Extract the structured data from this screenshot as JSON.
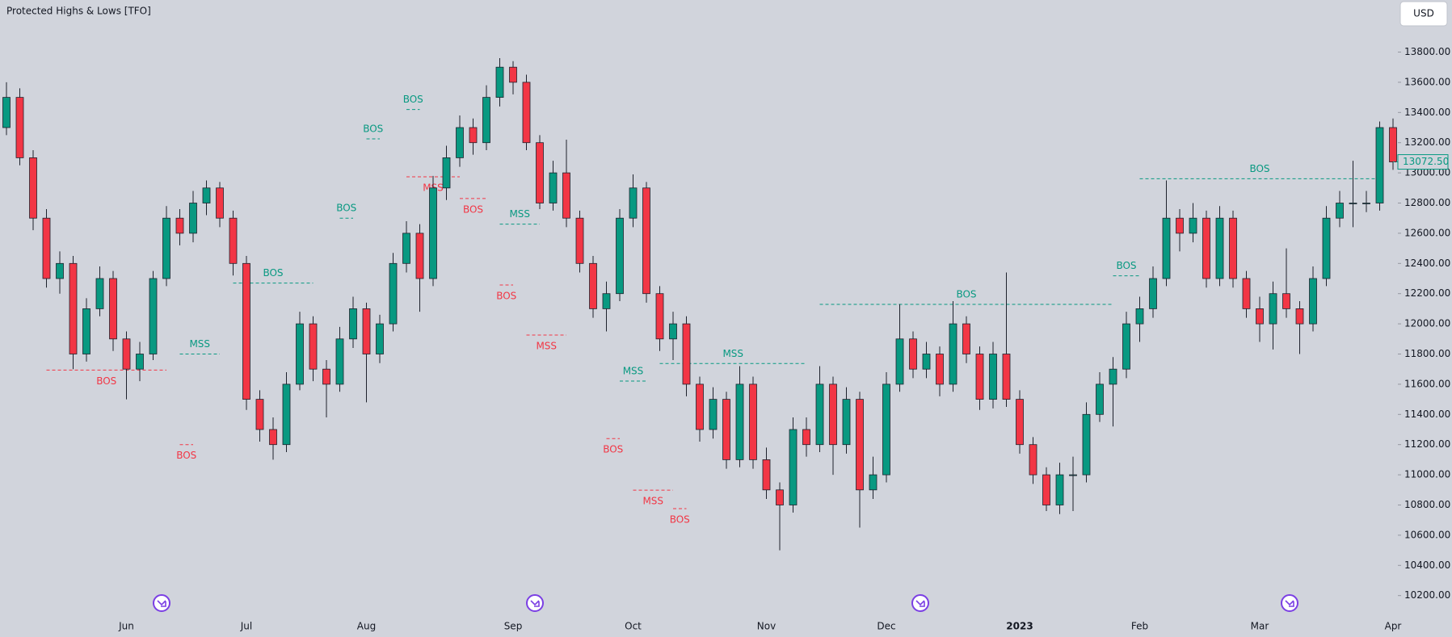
{
  "chart_data": {
    "type": "candlestick",
    "title": "Protected Highs & Lows [TFO]",
    "currency": "USD",
    "last_price_label": "13072.50",
    "up_color": "#089981",
    "down_color": "#f23645",
    "ylim": [
      10070,
      14145
    ],
    "yticks": [
      {
        "value": 10200,
        "label": "10200.00"
      },
      {
        "value": 10400,
        "label": "10400.00"
      },
      {
        "value": 10600,
        "label": "10600.00"
      },
      {
        "value": 10800,
        "label": "10800.00"
      },
      {
        "value": 11000,
        "label": "11000.00"
      },
      {
        "value": 11200,
        "label": "11200.00"
      },
      {
        "value": 11400,
        "label": "11400.00"
      },
      {
        "value": 11600,
        "label": "11600.00"
      },
      {
        "value": 11800,
        "label": "11800.00"
      },
      {
        "value": 12000,
        "label": "12000.00"
      },
      {
        "value": 12200,
        "label": "12200.00"
      },
      {
        "value": 12400,
        "label": "12400.00"
      },
      {
        "value": 12600,
        "label": "12600.00"
      },
      {
        "value": 12800,
        "label": "12800.00"
      },
      {
        "value": 13000,
        "label": "13000.00"
      },
      {
        "value": 13200,
        "label": "13200.00"
      },
      {
        "value": 13400,
        "label": "13400.00"
      },
      {
        "value": 13600,
        "label": "13600.00"
      },
      {
        "value": 13800,
        "label": "13800.00"
      }
    ],
    "xticks": [
      {
        "value": 9,
        "label": "Jun"
      },
      {
        "value": 18,
        "label": "Jul"
      },
      {
        "value": 27,
        "label": "Aug"
      },
      {
        "value": 38,
        "label": "Sep"
      },
      {
        "value": 47,
        "label": "Oct"
      },
      {
        "value": 57,
        "label": "Nov"
      },
      {
        "value": 66,
        "label": "Dec"
      },
      {
        "value": 76,
        "label": "2023"
      },
      {
        "value": 85,
        "label": "Feb"
      },
      {
        "value": 94,
        "label": "Mar"
      },
      {
        "value": 104,
        "label": "Apr"
      }
    ],
    "candles": [
      [
        13300,
        13600,
        13250,
        13500
      ],
      [
        13500,
        13560,
        13050,
        13100
      ],
      [
        13100,
        13150,
        12620,
        12700
      ],
      [
        12700,
        12760,
        12240,
        12300
      ],
      [
        12300,
        12480,
        12200,
        12400
      ],
      [
        12400,
        12450,
        11700,
        11800
      ],
      [
        11800,
        12170,
        11750,
        12100
      ],
      [
        12100,
        12380,
        12050,
        12300
      ],
      [
        12300,
        12350,
        11820,
        11900
      ],
      [
        11900,
        11950,
        11500,
        11700
      ],
      [
        11700,
        11880,
        11620,
        11800
      ],
      [
        11800,
        12350,
        11760,
        12300
      ],
      [
        12300,
        12780,
        12250,
        12700
      ],
      [
        12700,
        12760,
        12520,
        12600
      ],
      [
        12600,
        12880,
        12540,
        12800
      ],
      [
        12800,
        12950,
        12720,
        12900
      ],
      [
        12900,
        12940,
        12640,
        12700
      ],
      [
        12700,
        12750,
        12320,
        12400
      ],
      [
        12400,
        12450,
        11430,
        11500
      ],
      [
        11500,
        11560,
        11220,
        11300
      ],
      [
        11300,
        11380,
        11100,
        11200
      ],
      [
        11200,
        11680,
        11150,
        11600
      ],
      [
        11600,
        12080,
        11560,
        12000
      ],
      [
        12000,
        12050,
        11620,
        11700
      ],
      [
        11700,
        11760,
        11380,
        11600
      ],
      [
        11600,
        11980,
        11550,
        11900
      ],
      [
        11900,
        12180,
        11840,
        12100
      ],
      [
        12100,
        12140,
        11480,
        11800
      ],
      [
        11800,
        12060,
        11740,
        12000
      ],
      [
        12000,
        12470,
        11950,
        12400
      ],
      [
        12400,
        12680,
        12340,
        12600
      ],
      [
        12600,
        12660,
        12080,
        12300
      ],
      [
        12300,
        12980,
        12250,
        12900
      ],
      [
        12900,
        13180,
        12820,
        13100
      ],
      [
        13100,
        13380,
        13040,
        13300
      ],
      [
        13300,
        13360,
        13120,
        13200
      ],
      [
        13200,
        13580,
        13150,
        13500
      ],
      [
        13500,
        13760,
        13440,
        13700
      ],
      [
        13700,
        13740,
        13520,
        13600
      ],
      [
        13600,
        13650,
        13150,
        13200
      ],
      [
        13200,
        13250,
        12760,
        12800
      ],
      [
        12800,
        13080,
        12750,
        13000
      ],
      [
        13000,
        13220,
        12640,
        12700
      ],
      [
        12700,
        12750,
        12340,
        12400
      ],
      [
        12400,
        12450,
        12040,
        12100
      ],
      [
        12100,
        12280,
        11950,
        12200
      ],
      [
        12200,
        12760,
        12150,
        12700
      ],
      [
        12700,
        12990,
        12640,
        12900
      ],
      [
        12900,
        12940,
        12140,
        12200
      ],
      [
        12200,
        12250,
        11820,
        11900
      ],
      [
        11900,
        12080,
        11760,
        12000
      ],
      [
        12000,
        12050,
        11520,
        11600
      ],
      [
        11600,
        11650,
        11220,
        11300
      ],
      [
        11300,
        11580,
        11240,
        11500
      ],
      [
        11500,
        11550,
        11040,
        11100
      ],
      [
        11100,
        11720,
        11050,
        11600
      ],
      [
        11600,
        11650,
        11040,
        11100
      ],
      [
        11100,
        11180,
        10840,
        10900
      ],
      [
        10900,
        10950,
        10500,
        10800
      ],
      [
        10800,
        11380,
        10750,
        11300
      ],
      [
        11300,
        11380,
        11120,
        11200
      ],
      [
        11200,
        11720,
        11150,
        11600
      ],
      [
        11600,
        11650,
        11000,
        11200
      ],
      [
        11200,
        11580,
        11140,
        11500
      ],
      [
        11500,
        11550,
        10650,
        10900
      ],
      [
        10900,
        11120,
        10840,
        11000
      ],
      [
        11000,
        11680,
        10950,
        11600
      ],
      [
        11600,
        12130,
        11550,
        11900
      ],
      [
        11900,
        11950,
        11640,
        11700
      ],
      [
        11700,
        11880,
        11640,
        11800
      ],
      [
        11800,
        11850,
        11520,
        11600
      ],
      [
        11600,
        12150,
        11550,
        12000
      ],
      [
        12000,
        12050,
        11740,
        11800
      ],
      [
        11800,
        11850,
        11430,
        11500
      ],
      [
        11500,
        11880,
        11440,
        11800
      ],
      [
        11800,
        12340,
        11450,
        11500
      ],
      [
        11500,
        11560,
        11140,
        11200
      ],
      [
        11200,
        11250,
        10940,
        11000
      ],
      [
        11000,
        11050,
        10760,
        10800
      ],
      [
        10800,
        11080,
        10740,
        11000
      ],
      [
        11000,
        11120,
        10760,
        11000
      ],
      [
        11000,
        11480,
        10950,
        11400
      ],
      [
        11400,
        11680,
        11350,
        11600
      ],
      [
        11600,
        11780,
        11320,
        11700
      ],
      [
        11700,
        12080,
        11640,
        12000
      ],
      [
        12000,
        12180,
        11880,
        12100
      ],
      [
        12100,
        12380,
        12040,
        12300
      ],
      [
        12300,
        12950,
        12250,
        12700
      ],
      [
        12700,
        12760,
        12480,
        12600
      ],
      [
        12600,
        12800,
        12540,
        12700
      ],
      [
        12700,
        12750,
        12240,
        12300
      ],
      [
        12300,
        12780,
        12250,
        12700
      ],
      [
        12700,
        12750,
        12240,
        12300
      ],
      [
        12300,
        12350,
        12040,
        12100
      ],
      [
        12100,
        12180,
        11880,
        12000
      ],
      [
        12000,
        12280,
        11830,
        12200
      ],
      [
        12200,
        12500,
        12040,
        12100
      ],
      [
        12100,
        12150,
        11800,
        12000
      ],
      [
        12000,
        12380,
        11950,
        12300
      ],
      [
        12300,
        12780,
        12250,
        12700
      ],
      [
        12700,
        12880,
        12640,
        12800
      ],
      [
        12800,
        13080,
        12640,
        12800
      ],
      [
        12800,
        12880,
        12740,
        12800
      ],
      [
        12800,
        13340,
        12750,
        13300
      ],
      [
        13300,
        13360,
        13020,
        13072.5
      ]
    ],
    "structures": [
      {
        "label": "BOS",
        "level": 11694,
        "start": 3,
        "end": 12,
        "color": "#f23645"
      },
      {
        "label": "BOS",
        "level": 11200,
        "start": 13,
        "end": 14,
        "color": "#f23645"
      },
      {
        "label": "MSS",
        "level": 11800,
        "start": 13,
        "end": 16,
        "color": "#089981"
      },
      {
        "label": "BOS",
        "level": 12270,
        "start": 17,
        "end": 23,
        "color": "#089981"
      },
      {
        "label": "BOS",
        "level": 12700,
        "start": 25,
        "end": 26,
        "color": "#089981"
      },
      {
        "label": "BOS",
        "level": 13225,
        "start": 27,
        "end": 28,
        "color": "#089981"
      },
      {
        "label": "BOS",
        "level": 13420,
        "start": 30,
        "end": 31,
        "color": "#089981"
      },
      {
        "label": "MSS",
        "level": 12974,
        "start": 30,
        "end": 34,
        "color": "#f23645"
      },
      {
        "label": "BOS",
        "level": 12830,
        "start": 34,
        "end": 36,
        "color": "#f23645"
      },
      {
        "label": "MSS",
        "level": 12660,
        "start": 37,
        "end": 40,
        "color": "#089981"
      },
      {
        "label": "BOS",
        "level": 12257,
        "start": 37,
        "end": 38,
        "color": "#f23645"
      },
      {
        "label": "MSS",
        "level": 11926,
        "start": 39,
        "end": 42,
        "color": "#f23645"
      },
      {
        "label": "BOS",
        "level": 11240,
        "start": 45,
        "end": 46,
        "color": "#f23645"
      },
      {
        "label": "MSS",
        "level": 11621,
        "start": 46,
        "end": 48,
        "color": "#089981"
      },
      {
        "label": "MSS",
        "level": 11737,
        "start": 49,
        "end": 60,
        "color": "#089981"
      },
      {
        "label": "MSS",
        "level": 10898,
        "start": 47,
        "end": 50,
        "color": "#f23645"
      },
      {
        "label": "BOS",
        "level": 10776,
        "start": 50,
        "end": 51,
        "color": "#f23645"
      },
      {
        "label": "BOS",
        "level": 12129,
        "start": 61,
        "end": 83,
        "color": "#089981"
      },
      {
        "label": "BOS",
        "level": 12318,
        "start": 83,
        "end": 85,
        "color": "#089981"
      },
      {
        "label": "BOS",
        "level": 12961,
        "start": 85,
        "end": 103,
        "color": "#089981"
      }
    ]
  }
}
